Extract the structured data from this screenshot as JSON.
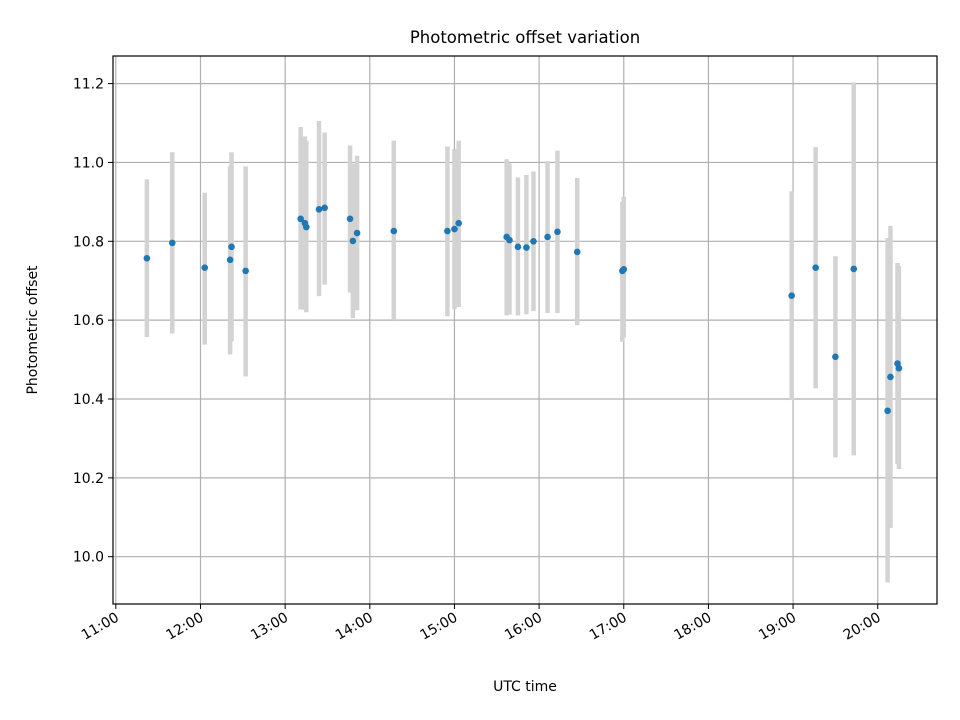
{
  "chart_data": {
    "type": "scatter",
    "title": "Photometric offset variation",
    "xlabel": "UTC time",
    "ylabel": "Photometric offset",
    "x_ticks": [
      "11:00",
      "12:00",
      "13:00",
      "14:00",
      "15:00",
      "16:00",
      "17:00",
      "18:00",
      "19:00",
      "20:00"
    ],
    "y_ticks": [
      "10.0",
      "10.2",
      "10.4",
      "10.6",
      "10.8",
      "11.0",
      "11.2"
    ],
    "xlim": [
      "10:58",
      "20:42"
    ],
    "ylim": [
      9.88,
      11.27
    ],
    "grid": true,
    "series": [
      {
        "error_bars": true,
        "points": [
          {
            "x": "11:22",
            "y": 10.757,
            "lo": 10.557,
            "hi": 10.957
          },
          {
            "x": "11:40",
            "y": 10.796,
            "lo": 10.566,
            "hi": 11.026
          },
          {
            "x": "12:03",
            "y": 10.733,
            "lo": 10.538,
            "hi": 10.923
          },
          {
            "x": "12:21",
            "y": 10.753,
            "lo": 10.513,
            "hi": 10.99
          },
          {
            "x": "12:22",
            "y": 10.786,
            "lo": 10.546,
            "hi": 11.026
          },
          {
            "x": "12:32",
            "y": 10.725,
            "lo": 10.457,
            "hi": 10.99
          },
          {
            "x": "13:11",
            "y": 10.857,
            "lo": 10.627,
            "hi": 11.09
          },
          {
            "x": "13:14",
            "y": 10.846,
            "lo": 10.626,
            "hi": 11.066
          },
          {
            "x": "13:15",
            "y": 10.836,
            "lo": 10.62,
            "hi": 11.055
          },
          {
            "x": "13:24",
            "y": 10.881,
            "lo": 10.661,
            "hi": 11.105
          },
          {
            "x": "13:28",
            "y": 10.885,
            "lo": 10.69,
            "hi": 11.076
          },
          {
            "x": "13:46",
            "y": 10.857,
            "lo": 10.67,
            "hi": 11.043
          },
          {
            "x": "13:48",
            "y": 10.801,
            "lo": 10.605,
            "hi": 10.997
          },
          {
            "x": "13:51",
            "y": 10.821,
            "lo": 10.625,
            "hi": 11.017
          },
          {
            "x": "14:17",
            "y": 10.826,
            "lo": 10.6,
            "hi": 11.055
          },
          {
            "x": "14:55",
            "y": 10.826,
            "lo": 10.61,
            "hi": 11.04
          },
          {
            "x": "15:00",
            "y": 10.831,
            "lo": 10.628,
            "hi": 11.034
          },
          {
            "x": "15:03",
            "y": 10.846,
            "lo": 10.633,
            "hi": 11.055
          },
          {
            "x": "15:37",
            "y": 10.811,
            "lo": 10.612,
            "hi": 11.008
          },
          {
            "x": "15:39",
            "y": 10.803,
            "lo": 10.614,
            "hi": 10.998
          },
          {
            "x": "15:45",
            "y": 10.786,
            "lo": 10.612,
            "hi": 10.962
          },
          {
            "x": "15:51",
            "y": 10.784,
            "lo": 10.615,
            "hi": 10.968
          },
          {
            "x": "15:56",
            "y": 10.8,
            "lo": 10.623,
            "hi": 10.977
          },
          {
            "x": "16:06",
            "y": 10.811,
            "lo": 10.618,
            "hi": 11.003
          },
          {
            "x": "16:13",
            "y": 10.824,
            "lo": 10.618,
            "hi": 11.03
          },
          {
            "x": "16:27",
            "y": 10.773,
            "lo": 10.587,
            "hi": 10.961
          },
          {
            "x": "16:59",
            "y": 10.725,
            "lo": 10.545,
            "hi": 10.9
          },
          {
            "x": "17:00",
            "y": 10.729,
            "lo": 10.556,
            "hi": 10.913
          },
          {
            "x": "18:59",
            "y": 10.662,
            "lo": 10.397,
            "hi": 10.927
          },
          {
            "x": "19:16",
            "y": 10.733,
            "lo": 10.427,
            "hi": 11.039
          },
          {
            "x": "19:30",
            "y": 10.507,
            "lo": 10.252,
            "hi": 10.762
          },
          {
            "x": "19:43",
            "y": 10.73,
            "lo": 10.257,
            "hi": 11.203
          },
          {
            "x": "20:07",
            "y": 10.37,
            "lo": 9.935,
            "hi": 10.808
          },
          {
            "x": "20:09",
            "y": 10.456,
            "lo": 10.073,
            "hi": 10.839
          },
          {
            "x": "20:14",
            "y": 10.49,
            "lo": 10.235,
            "hi": 10.745
          },
          {
            "x": "20:15",
            "y": 10.478,
            "lo": 10.222,
            "hi": 10.737
          }
        ]
      }
    ],
    "colors": {
      "points": "#1f77b4",
      "error_bars": "#d3d3d3",
      "grid": "#b0b0b0"
    }
  }
}
